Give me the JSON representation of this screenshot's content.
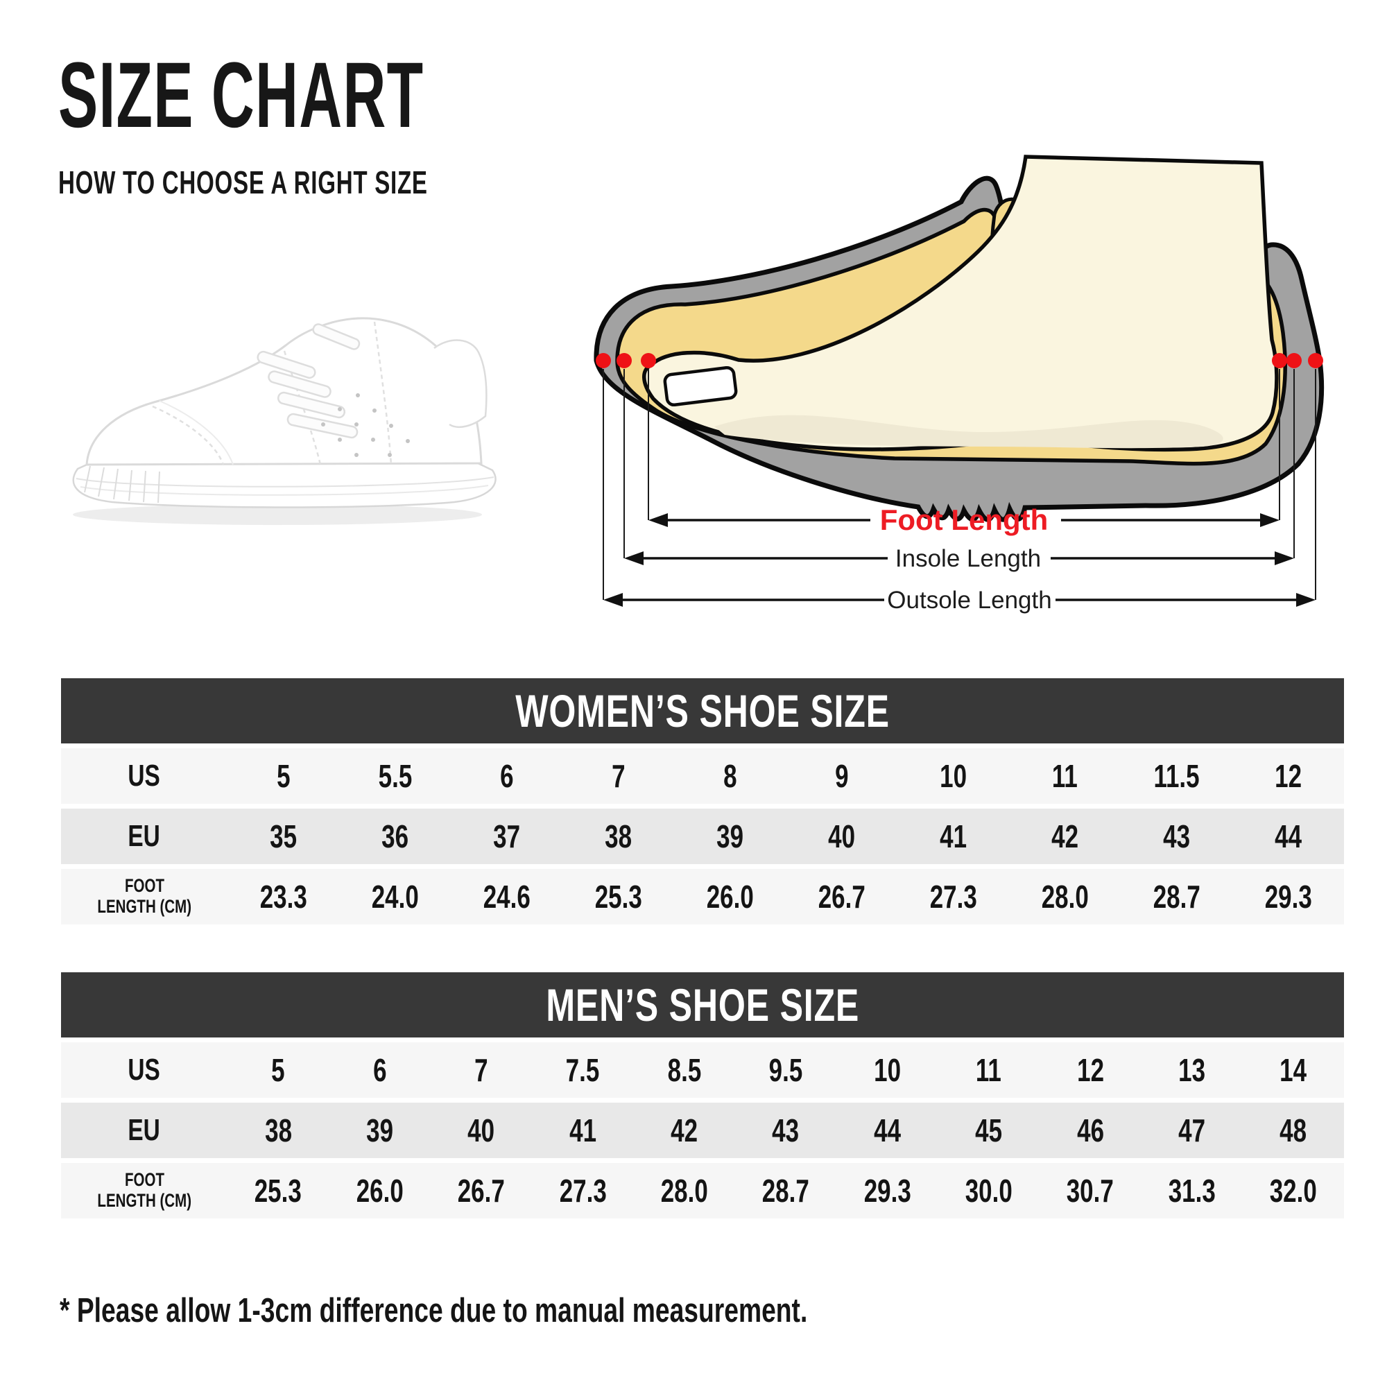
{
  "header": {
    "title": "SIZE CHART",
    "subtitle": "HOW TO CHOOSE A RIGHT SIZE"
  },
  "diagram": {
    "foot_length_label": "Foot Length",
    "insole_length_label": "Insole Length",
    "outsole_length_label": "Outsole Length",
    "colors": {
      "foot_label_red": "#ed1c24",
      "marker_dot_red": "#ee1216",
      "shoe_gray": "#a2a2a2",
      "insole_yellow": "#f4d98b",
      "foot_cream": "#faf5df",
      "foot_shadow": "#efe9d3",
      "outline_black": "#0b0b0b"
    }
  },
  "sneaker": {
    "alt": "white low-top sneaker photo"
  },
  "tables": [
    {
      "title": "WOMEN’S SHOE SIZE",
      "rows": [
        {
          "label": "US",
          "label2": "",
          "values": [
            "5",
            "5.5",
            "6",
            "7",
            "8",
            "9",
            "10",
            "11",
            "11.5",
            "12"
          ]
        },
        {
          "label": "EU",
          "label2": "",
          "values": [
            "35",
            "36",
            "37",
            "38",
            "39",
            "40",
            "41",
            "42",
            "43",
            "44"
          ]
        },
        {
          "label": "FOOT",
          "label2": "LENGTH (CM)",
          "values": [
            "23.3",
            "24.0",
            "24.6",
            "25.3",
            "26.0",
            "26.7",
            "27.3",
            "28.0",
            "28.7",
            "29.3"
          ]
        }
      ]
    },
    {
      "title": "MEN’S SHOE SIZE",
      "rows": [
        {
          "label": "US",
          "label2": "",
          "values": [
            "5",
            "6",
            "7",
            "7.5",
            "8.5",
            "9.5",
            "10",
            "11",
            "12",
            "13",
            "14"
          ]
        },
        {
          "label": "EU",
          "label2": "",
          "values": [
            "38",
            "39",
            "40",
            "41",
            "42",
            "43",
            "44",
            "45",
            "46",
            "47",
            "48"
          ]
        },
        {
          "label": "FOOT",
          "label2": "LENGTH (CM)",
          "values": [
            "25.3",
            "26.0",
            "26.7",
            "27.3",
            "28.0",
            "28.7",
            "29.3",
            "30.0",
            "30.7",
            "31.3",
            "32.0"
          ]
        }
      ]
    }
  ],
  "table_style": {
    "header_bar_color": "#383838",
    "row_light_color": "#f6f6f6",
    "row_dark_color": "#e8e8e8"
  },
  "footnote": "* Please allow 1-3cm difference due to manual measurement."
}
